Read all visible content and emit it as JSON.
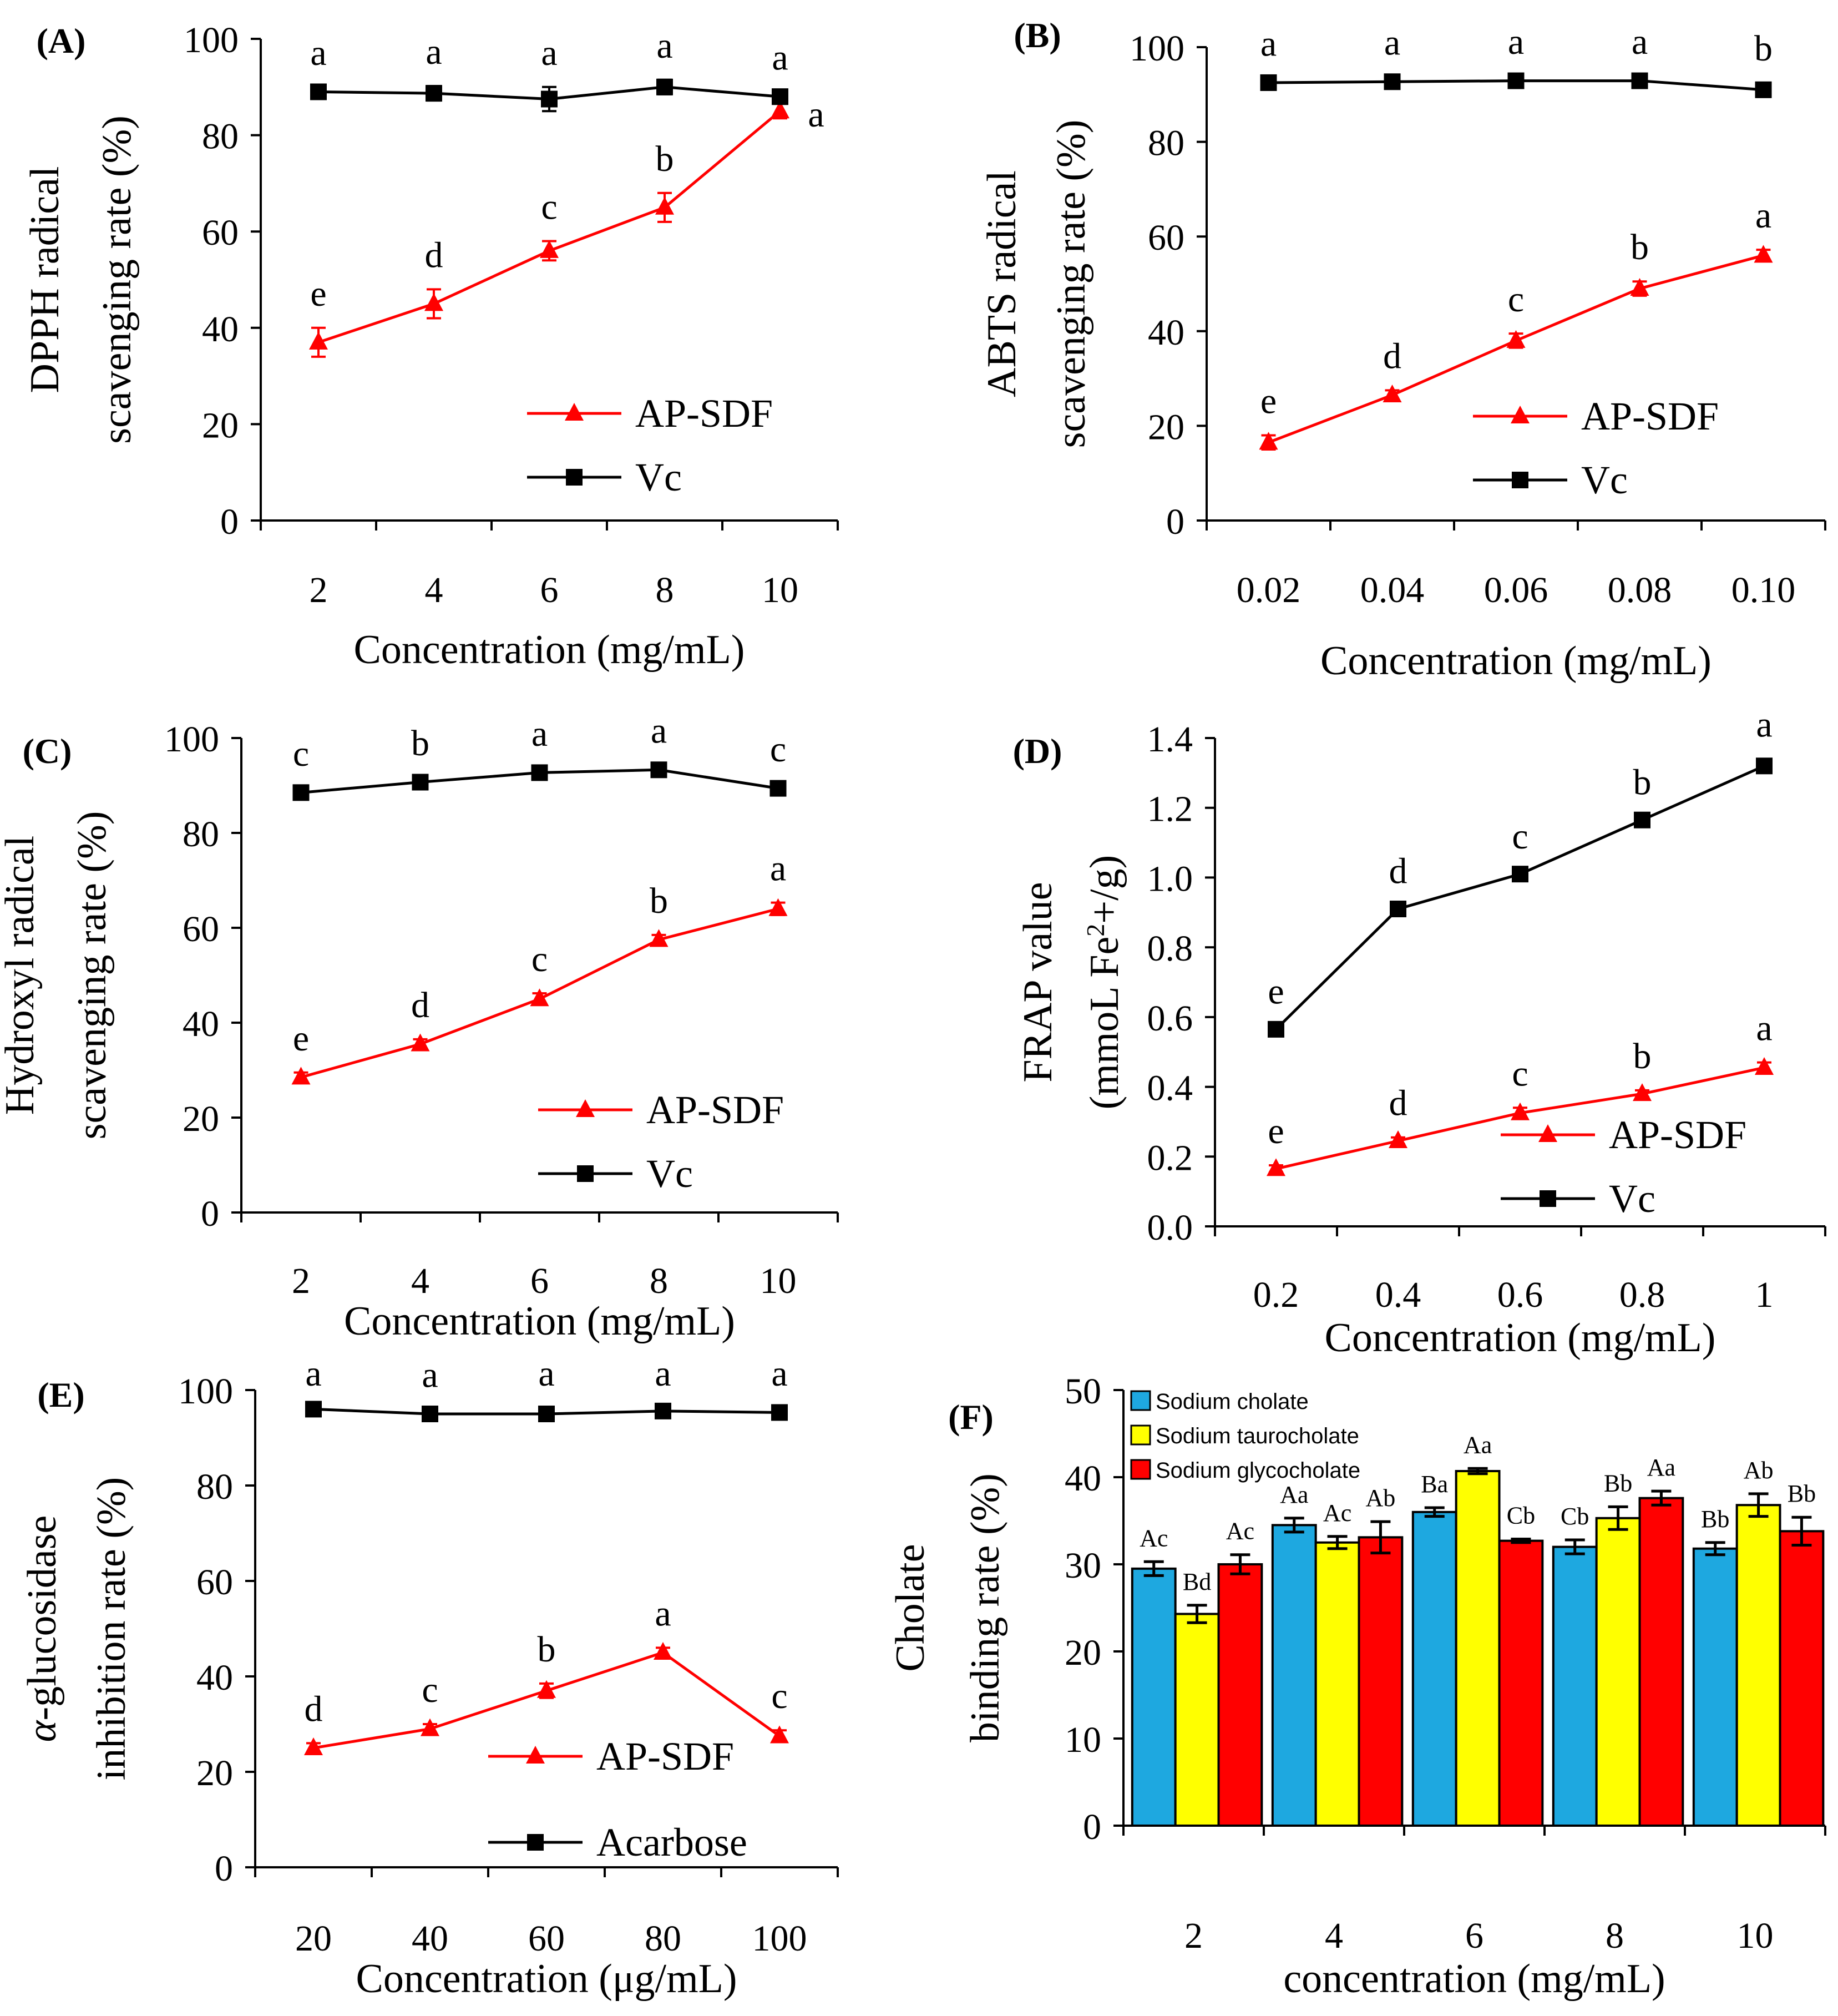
{
  "chart_data": [
    {
      "id": "A",
      "type": "line",
      "panel_label": "(A)",
      "xlabel": "Concentration (mg/mL)",
      "ylabel_lines": [
        "DPPH radical",
        "scavenging rate (%)"
      ],
      "categories": [
        "2",
        "4",
        "6",
        "8",
        "10"
      ],
      "ylim": [
        0,
        100
      ],
      "yticks": [
        0,
        20,
        40,
        60,
        80,
        100
      ],
      "ytick_labels": [
        "0",
        "20",
        "40",
        "60",
        "80",
        "100"
      ],
      "legend_position": "lower-right",
      "series": [
        {
          "name": "AP-SDF",
          "color": "#ff0000",
          "marker": "triangle",
          "values": [
            37,
            45,
            56,
            65,
            85
          ],
          "errors": [
            3,
            3,
            2,
            3,
            1.5
          ],
          "letters": [
            "e",
            "d",
            "c",
            "b",
            "a"
          ]
        },
        {
          "name": "Vc",
          "color": "#000000",
          "marker": "square",
          "values": [
            89,
            88.7,
            87.5,
            90,
            88
          ],
          "errors": [
            1,
            1.5,
            2.5,
            1.5,
            1
          ],
          "letters": [
            "a",
            "a",
            "a",
            "a",
            "a"
          ]
        }
      ]
    },
    {
      "id": "B",
      "type": "line",
      "panel_label": "(B)",
      "xlabel": "Concentration (mg/mL)",
      "ylabel_lines": [
        "ABTS radical",
        "scavenging rate (%)"
      ],
      "categories": [
        "0.02",
        "0.04",
        "0.06",
        "0.08",
        "0.10"
      ],
      "ylim": [
        0,
        100
      ],
      "yticks": [
        0,
        20,
        40,
        60,
        80,
        100
      ],
      "ytick_labels": [
        "0",
        "20",
        "40",
        "60",
        "80",
        "100"
      ],
      "legend_position": "lower-right",
      "series": [
        {
          "name": "AP-SDF",
          "color": "#ff0000",
          "marker": "triangle",
          "values": [
            16.5,
            26.5,
            38,
            49,
            56
          ],
          "errors": [
            1.5,
            1,
            1.5,
            1.5,
            1.2
          ],
          "letters": [
            "e",
            "d",
            "c",
            "b",
            "a"
          ]
        },
        {
          "name": "Vc",
          "color": "#000000",
          "marker": "square",
          "values": [
            92.5,
            92.7,
            92.9,
            92.9,
            91
          ],
          "errors": [
            1,
            1,
            1,
            1,
            1.5
          ],
          "letters": [
            "a",
            "a",
            "a",
            "a",
            "b"
          ]
        }
      ]
    },
    {
      "id": "C",
      "type": "line",
      "panel_label": "(C)",
      "xlabel": "Concentration (mg/mL)",
      "ylabel_lines": [
        "Hydroxyl radical",
        "scavenging rate (%)"
      ],
      "categories": [
        "2",
        "4",
        "6",
        "8",
        "10"
      ],
      "ylim": [
        0,
        100
      ],
      "yticks": [
        0,
        20,
        40,
        60,
        80,
        100
      ],
      "ytick_labels": [
        "0",
        "20",
        "40",
        "60",
        "80",
        "100"
      ],
      "legend_position": "lower-right",
      "series": [
        {
          "name": "AP-SDF",
          "color": "#ff0000",
          "marker": "triangle",
          "values": [
            28.5,
            35.5,
            45,
            57.5,
            64
          ],
          "errors": [
            1,
            1,
            1.2,
            1,
            1.3
          ],
          "letters": [
            "e",
            "d",
            "c",
            "b",
            "a"
          ]
        },
        {
          "name": "Vc",
          "color": "#000000",
          "marker": "square",
          "values": [
            88.5,
            90.7,
            92.7,
            93.3,
            89.4
          ],
          "errors": [
            1,
            1,
            1,
            1,
            1
          ],
          "letters": [
            "c",
            "b",
            "a",
            "a",
            "c"
          ]
        }
      ]
    },
    {
      "id": "D",
      "type": "line",
      "panel_label": "(D)",
      "xlabel": "Concentration (mg/mL)",
      "ylabel_line1": "FRAP value",
      "ylabel_line2_pre": "(mmoL Fe",
      "ylabel_line2_sup": "2",
      "ylabel_line2_post": "+/g)",
      "categories": [
        "0.2",
        "0.4",
        "0.6",
        "0.8",
        "1"
      ],
      "ylim": [
        0,
        1.4
      ],
      "yticks": [
        0,
        0.2,
        0.4,
        0.6,
        0.8,
        1.0,
        1.2,
        1.4
      ],
      "ytick_labels": [
        "0.0",
        "0.2",
        "0.4",
        "0.6",
        "0.8",
        "1.0",
        "1.2",
        "1.4"
      ],
      "legend_position": "lower-right",
      "series": [
        {
          "name": "AP-SDF",
          "color": "#ff0000",
          "marker": "triangle",
          "values": [
            0.165,
            0.245,
            0.325,
            0.38,
            0.455
          ],
          "errors": [
            0.01,
            0.01,
            0.015,
            0.01,
            0.015
          ],
          "letters": [
            "e",
            "d",
            "c",
            "b",
            "a"
          ]
        },
        {
          "name": "Vc",
          "color": "#000000",
          "marker": "square",
          "values": [
            0.565,
            0.91,
            1.01,
            1.165,
            1.32
          ],
          "errors": [
            0.01,
            0.01,
            0.01,
            0.01,
            0.02
          ],
          "letters": [
            "e",
            "d",
            "c",
            "b",
            "a"
          ]
        }
      ]
    },
    {
      "id": "E",
      "type": "line",
      "panel_label": "(E)",
      "xlabel": "Concentration (μg/mL)",
      "ylabel_line1_italic": "α",
      "ylabel_line1_rest": "-glucosidase",
      "ylabel_line2": "inhibition rate (%)",
      "categories": [
        "20",
        "40",
        "60",
        "80",
        "100"
      ],
      "ylim": [
        0,
        100
      ],
      "yticks": [
        0,
        20,
        40,
        60,
        80,
        100
      ],
      "ytick_labels": [
        "0",
        "20",
        "40",
        "60",
        "80",
        "100"
      ],
      "legend_position": "lower-right",
      "series": [
        {
          "name": "AP-SDF",
          "color": "#ff0000",
          "marker": "triangle",
          "values": [
            25,
            29,
            37,
            45,
            27.5
          ],
          "errors": [
            1,
            1,
            1.5,
            1,
            1.2
          ],
          "letters": [
            "d",
            "c",
            "b",
            "a",
            "c"
          ]
        },
        {
          "name": "Acarbose",
          "color": "#000000",
          "marker": "square",
          "values": [
            96,
            95,
            95,
            95.6,
            95.3
          ],
          "errors": [
            1,
            1,
            1.5,
            1,
            1
          ],
          "letters": [
            "a",
            "a",
            "a",
            "a",
            "a"
          ]
        }
      ]
    },
    {
      "id": "F",
      "type": "bar",
      "panel_label": "(F)",
      "xlabel": "concentration (mg/mL)",
      "ylabel_lines": [
        "Cholate",
        "binding rate (%)"
      ],
      "categories": [
        "2",
        "4",
        "6",
        "8",
        "10"
      ],
      "ylim": [
        0,
        50
      ],
      "yticks": [
        0,
        10,
        20,
        30,
        40,
        50
      ],
      "ytick_labels": [
        "0",
        "10",
        "20",
        "30",
        "40",
        "50"
      ],
      "legend_position": "top-left",
      "series": [
        {
          "name": "Sodium cholate",
          "color": "#1ea8e0",
          "values": [
            29.5,
            34.5,
            36,
            32,
            31.8
          ],
          "errors": [
            0.8,
            0.8,
            0.5,
            0.8,
            0.7
          ],
          "letters": [
            "Ac",
            "Aa",
            "Ba",
            "Cb",
            "Bb"
          ]
        },
        {
          "name": "Sodium taurocholate",
          "color": "#ffff00",
          "values": [
            24.3,
            32.5,
            40.7,
            35.3,
            36.8
          ],
          "errors": [
            1,
            0.7,
            0.3,
            1.3,
            1.3
          ],
          "letters": [
            "Bd",
            "Ac",
            "Aa",
            "Bb",
            "Ab"
          ]
        },
        {
          "name": "Sodium glycocholate",
          "color": "#ff0000",
          "values": [
            30,
            33.1,
            32.7,
            37.6,
            33.8
          ],
          "errors": [
            1.1,
            1.8,
            0.2,
            0.8,
            1.6
          ],
          "letters": [
            "Ac",
            "Ab",
            "Cb",
            "Aa",
            "Bb"
          ]
        }
      ]
    }
  ]
}
